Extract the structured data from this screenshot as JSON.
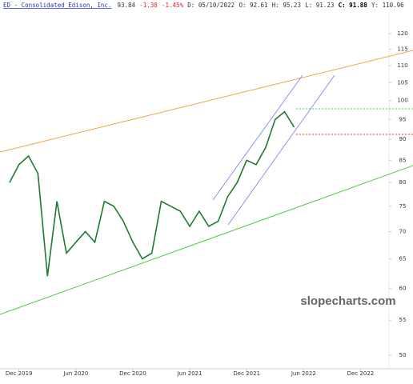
{
  "chart_data": {
    "type": "line",
    "title": "ED - Consolidated Edison, Inc.",
    "header": [
      "93.84",
      "-1.38",
      "-1.45%",
      "D: 05/10/2022",
      "O: 92.61",
      "H: 95.23",
      "L: 91.23",
      "C: 91.88",
      "Y: 110.96"
    ],
    "watermark": "slopecharts.com",
    "x": [
      "2019-11",
      "2019-12",
      "2020-01",
      "2020-02",
      "2020-03",
      "2020-04",
      "2020-05",
      "2020-06",
      "2020-07",
      "2020-08",
      "2020-09",
      "2020-10",
      "2020-11",
      "2020-12",
      "2021-01",
      "2021-02",
      "2021-03",
      "2021-04",
      "2021-05",
      "2021-06",
      "2021-07",
      "2021-08",
      "2021-09",
      "2021-10",
      "2021-11",
      "2021-12",
      "2022-01",
      "2022-02",
      "2022-03",
      "2022-04",
      "2022-05"
    ],
    "series": [
      {
        "name": "ED",
        "color": "#1e7a2e",
        "values": [
          80,
          84,
          86,
          82,
          62,
          76,
          66,
          68,
          70,
          68,
          76,
          75,
          72,
          68,
          65,
          66,
          76,
          75,
          74,
          71,
          74,
          71,
          72,
          77,
          80,
          85,
          84,
          88,
          95,
          97,
          93
        ]
      }
    ],
    "log_scale": true,
    "ylim": [
      50,
      120
    ],
    "yticks": [
      50,
      55,
      60,
      65,
      70,
      75,
      80,
      85,
      90,
      95,
      100,
      105,
      110,
      115,
      120
    ],
    "xlim": [
      "2019-10",
      "2023-03"
    ],
    "xticks": [
      {
        "value": "2019-12",
        "label": "Dec 2019"
      },
      {
        "value": "2020-06",
        "label": "Jun 2020"
      },
      {
        "value": "2020-12",
        "label": "Dec 2020"
      },
      {
        "value": "2021-06",
        "label": "Jun 2021"
      },
      {
        "value": "2021-12",
        "label": "Dec 2021"
      },
      {
        "value": "2022-06",
        "label": "Jun 2022"
      },
      {
        "value": "2022-12",
        "label": "Dec 2022"
      }
    ]
  }
}
